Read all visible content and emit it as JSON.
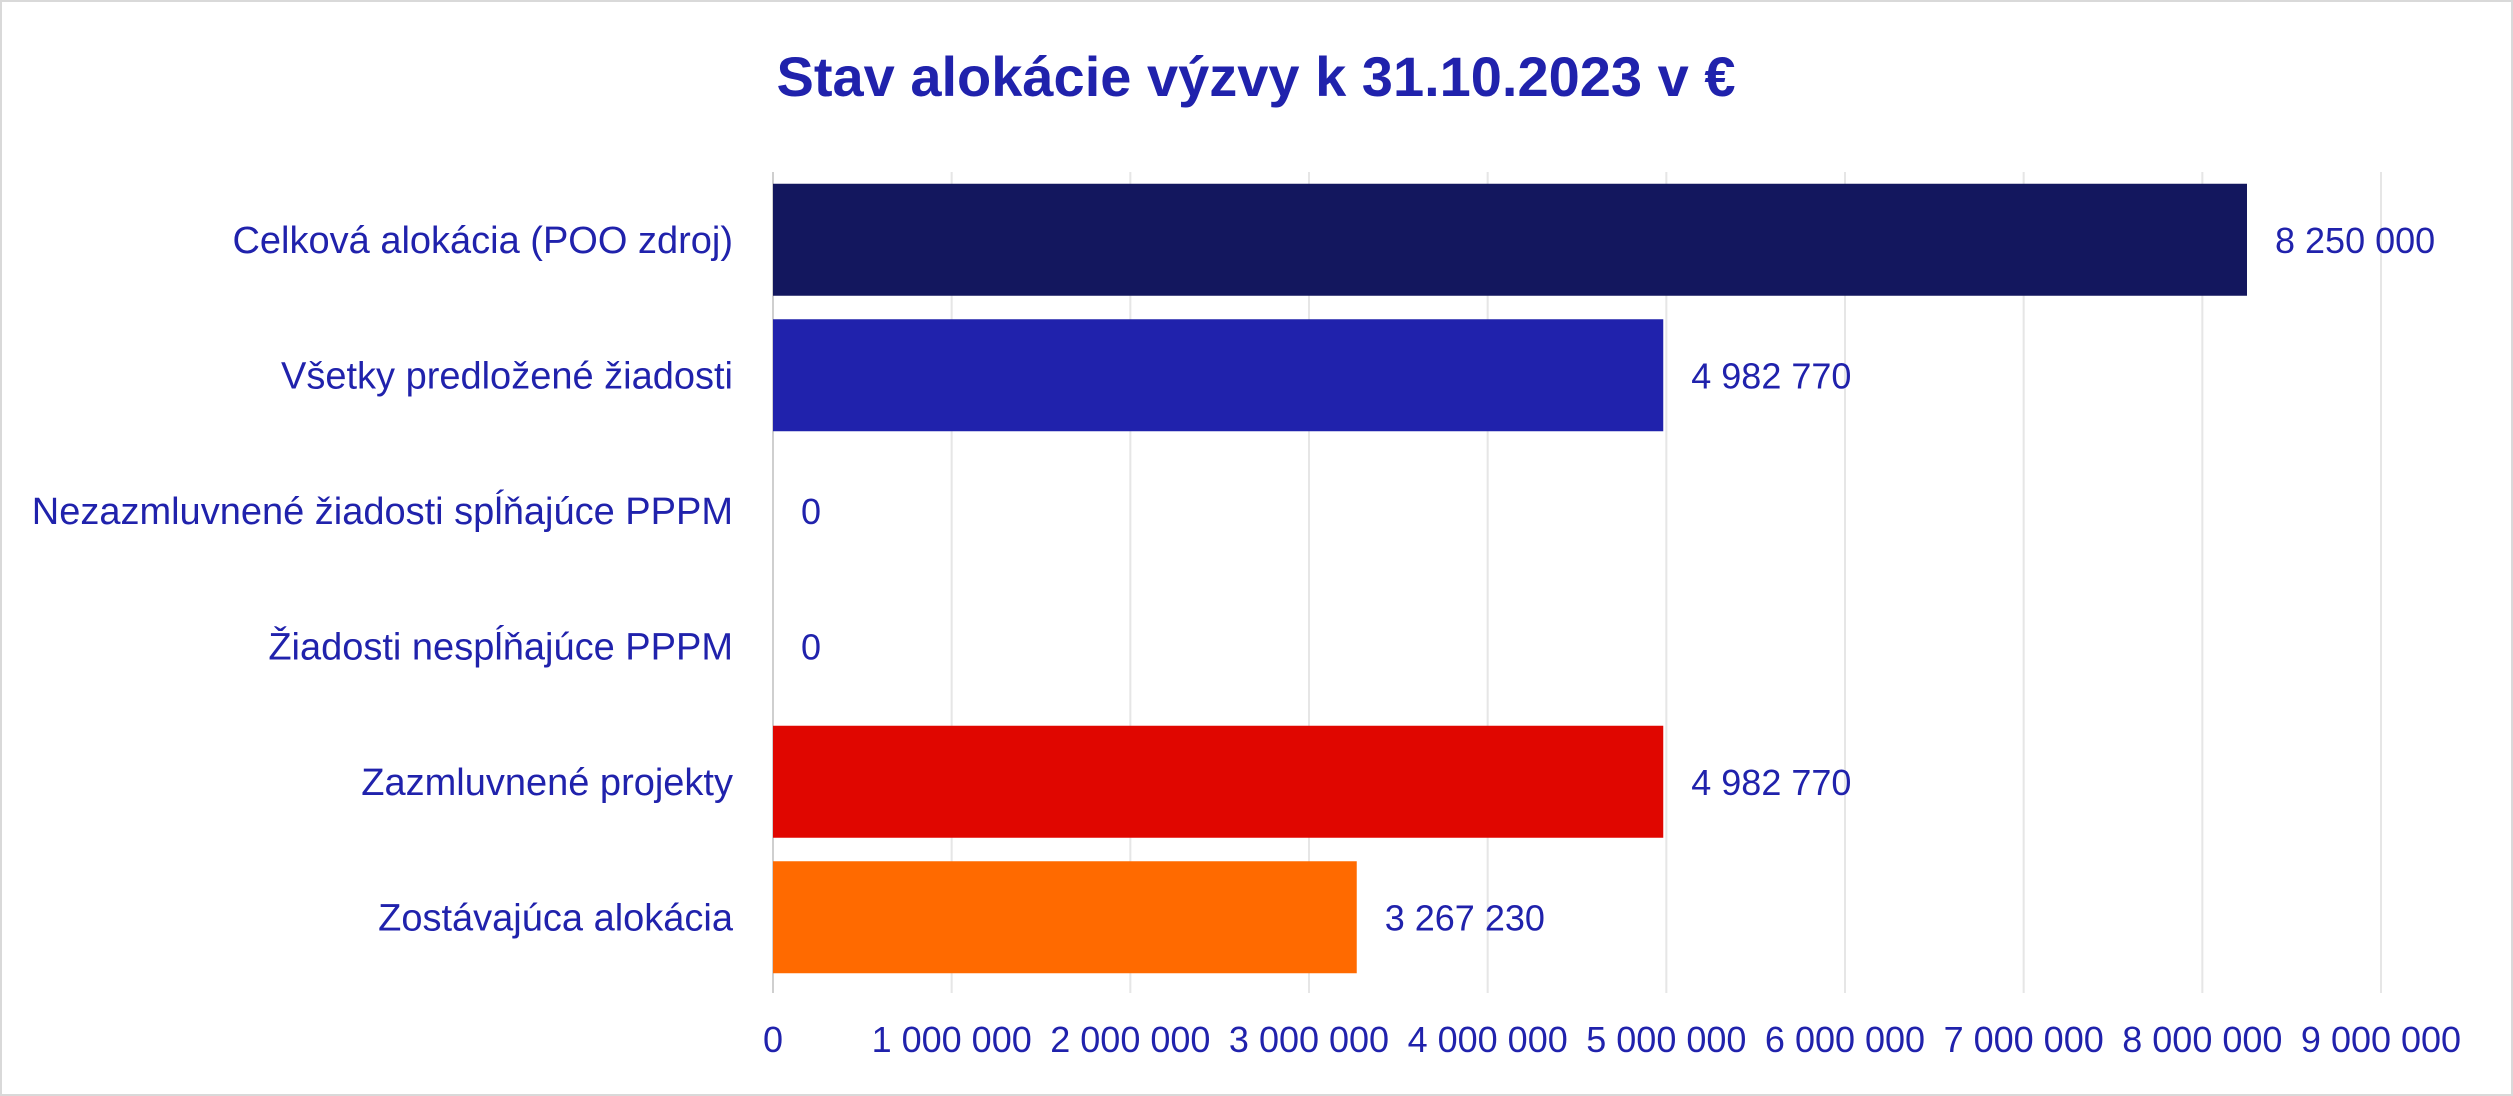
{
  "chart_data": {
    "type": "bar",
    "orientation": "horizontal",
    "title": "Stav alokácie výzvy k 31.10.2023 v €",
    "categories": [
      "Celková alokácia (POO zdroj)",
      "Všetky predložené žiadosti",
      "Nezazmluvnené žiadosti spĺňajúce PPPM",
      "Žiadosti nespĺňajúce PPPM",
      "Zazmluvnené projekty",
      "Zostávajúca alokácia"
    ],
    "values": [
      8250000,
      4982770,
      0,
      0,
      4982770,
      3267230
    ],
    "data_labels": [
      "8 250 000",
      "4 982 770",
      "0",
      "0",
      "4 982 770",
      "3 267 230"
    ],
    "bar_colors": [
      "#13175e",
      "#2022ac",
      "#2022ac",
      "#2022ac",
      "#e00600",
      "#ff6a00"
    ],
    "xlim": [
      0,
      9000000
    ],
    "x_ticks": [
      0,
      1000000,
      2000000,
      3000000,
      4000000,
      5000000,
      6000000,
      7000000,
      8000000,
      9000000
    ],
    "x_tick_labels": [
      "0",
      "1 000 000",
      "2 000 000",
      "3 000 000",
      "4 000 000",
      "5 000 000",
      "6 000 000",
      "7 000 000",
      "8 000 000",
      "9 000 000"
    ],
    "grid": true,
    "legend": "none",
    "text_color": "#2022ac",
    "grid_color": "#e6e6e6"
  }
}
